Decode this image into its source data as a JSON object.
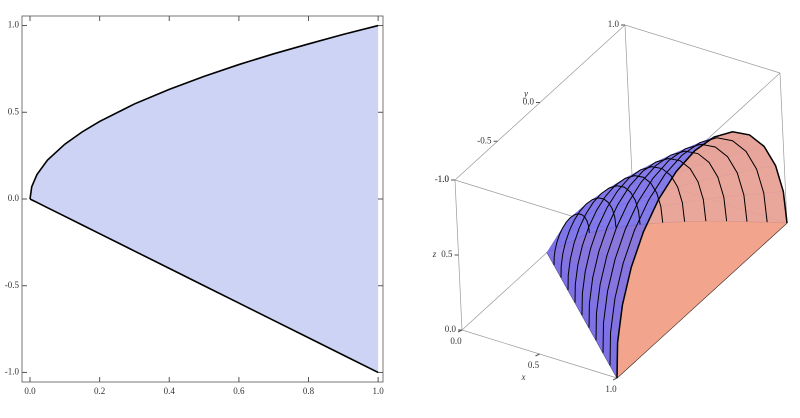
{
  "chart_data": [
    {
      "type": "area",
      "x": [
        0,
        0.005,
        0.02,
        0.05,
        0.1,
        0.15,
        0.2,
        0.3,
        0.4,
        0.5,
        0.6,
        0.7,
        0.8,
        0.9,
        1
      ],
      "upper": [
        0,
        0.071,
        0.141,
        0.224,
        0.316,
        0.387,
        0.447,
        0.548,
        0.632,
        0.707,
        0.775,
        0.837,
        0.894,
        0.949,
        1
      ],
      "lower": [
        0,
        -0.005,
        -0.02,
        -0.05,
        -0.1,
        -0.15,
        -0.2,
        -0.3,
        -0.4,
        -0.5,
        -0.6,
        -0.7,
        -0.8,
        -0.9,
        -1
      ],
      "color": "#cdd3f4",
      "line_color": "#000000",
      "xlim": [
        -0.023,
        1.014
      ],
      "ylim": [
        -1.055,
        1.055
      ],
      "xticks": [
        {
          "value": 0,
          "label": "0.0"
        },
        {
          "value": 0.2,
          "label": "0.2"
        },
        {
          "value": 0.4,
          "label": "0.4"
        },
        {
          "value": 0.6,
          "label": "0.6"
        },
        {
          "value": 0.8,
          "label": "0.8"
        },
        {
          "value": 1,
          "label": "1.0"
        }
      ],
      "yticks": [
        {
          "value": -1,
          "label": "-1.0"
        },
        {
          "value": -0.5,
          "label": "-0.5"
        },
        {
          "value": 0,
          "label": "0.0"
        },
        {
          "value": 0.5,
          "label": "0.5"
        },
        {
          "value": 1,
          "label": "1.0"
        }
      ]
    },
    {
      "type": "surface3d",
      "x": [
        0,
        0.1,
        0.2,
        0.3,
        0.4,
        0.5,
        0.6,
        0.7,
        0.8,
        0.9,
        1
      ],
      "upper": [
        0,
        0.316,
        0.447,
        0.548,
        0.632,
        0.707,
        0.775,
        0.837,
        0.894,
        0.949,
        1
      ],
      "lower": [
        0,
        -0.1,
        -0.2,
        -0.3,
        -0.4,
        -0.5,
        -0.6,
        -0.7,
        -0.8,
        -0.9,
        -1
      ],
      "surface_color": "#7a70e8",
      "cap_color": "#f2a48c",
      "xlim": [
        0,
        1
      ],
      "ylim": [
        -1,
        1
      ],
      "zlim": [
        0,
        1
      ],
      "xlabel": "x",
      "ylabel": "y",
      "zlabel": "z",
      "xticks": [
        {
          "value": 0,
          "label": "0.0"
        },
        {
          "value": 0.5,
          "label": "0.5"
        },
        {
          "value": 1,
          "label": "1.0"
        }
      ],
      "yticks": [
        {
          "value": -1,
          "label": "-1.0"
        },
        {
          "value": -0.5,
          "label": "-0.5"
        },
        {
          "value": 0,
          "label": "0.0"
        },
        {
          "value": 1,
          "label": "1.0"
        }
      ],
      "zticks": [
        {
          "value": 0,
          "label": "0.0"
        },
        {
          "value": 0.5,
          "label": "0.5"
        },
        {
          "value": 1,
          "label": "1.0"
        }
      ]
    }
  ]
}
